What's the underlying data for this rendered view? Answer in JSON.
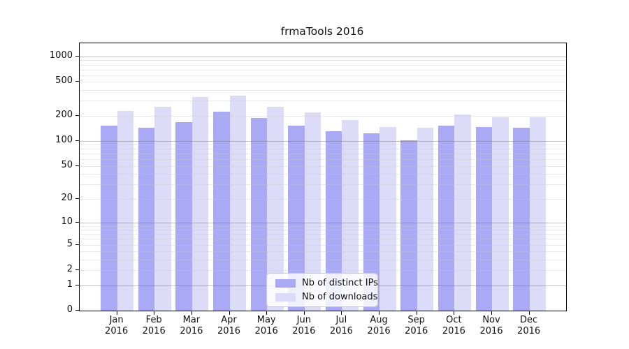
{
  "title": "frmaTools 2016",
  "colors": {
    "distinct_ips_bar": "#a9a9f5",
    "downloads_bar": "#dcdcf9",
    "grid_minor": "rgba(200,200,200,0.40)",
    "grid_major": "rgba(110,110,110,0.45)",
    "axis": "#000000"
  },
  "legend": {
    "items": [
      {
        "label": "Nb of distinct IPs",
        "color": "#a9a9f5"
      },
      {
        "label": "Nb of downloads",
        "color": "#dcdcf9"
      }
    ]
  },
  "y_axis": {
    "tick_labels": [
      "1000",
      "500",
      "200",
      "100",
      "50",
      "20",
      "10",
      "5",
      "2",
      "1",
      "0"
    ],
    "tick_values": [
      1000,
      500,
      200,
      100,
      50,
      20,
      10,
      5,
      2,
      1,
      0
    ]
  },
  "x_axis": {
    "months": [
      "Jan",
      "Feb",
      "Mar",
      "Apr",
      "May",
      "Jun",
      "Jul",
      "Aug",
      "Sep",
      "Oct",
      "Nov",
      "Dec"
    ],
    "year_line": "2016"
  },
  "chart_data": {
    "type": "bar",
    "title": "frmaTools 2016",
    "categories": [
      "Jan 2016",
      "Feb 2016",
      "Mar 2016",
      "Apr 2016",
      "May 2016",
      "Jun 2016",
      "Jul 2016",
      "Aug 2016",
      "Sep 2016",
      "Oct 2016",
      "Nov 2016",
      "Dec 2016"
    ],
    "series": [
      {
        "name": "Nb of distinct IPs",
        "color": "#a9a9f5",
        "values": [
          151,
          142,
          167,
          224,
          186,
          152,
          129,
          123,
          101,
          152,
          146,
          143
        ]
      },
      {
        "name": "Nb of downloads",
        "color": "#dcdcf9",
        "values": [
          227,
          255,
          330,
          345,
          253,
          220,
          176,
          146,
          142,
          204,
          190,
          192
        ]
      }
    ],
    "xlabel": "",
    "ylabel": "",
    "y_scale": "log10(value+1)",
    "y_ticks": [
      0,
      1,
      2,
      5,
      10,
      20,
      50,
      100,
      200,
      500,
      1000
    ],
    "ylim": [
      0,
      1100
    ],
    "grid": "horizontal, minor log steps light + powers of 10 darker, drawn over bars",
    "legend_position": "inside bottom-center"
  }
}
